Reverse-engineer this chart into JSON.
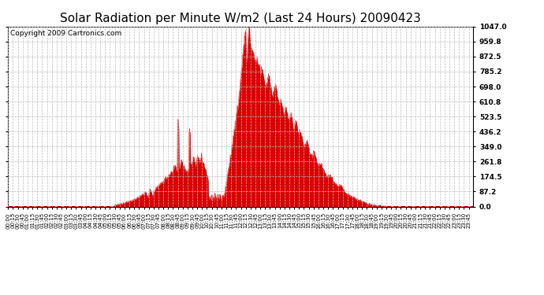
{
  "title": "Solar Radiation per Minute W/m2 (Last 24 Hours) 20090423",
  "copyright": "Copyright 2009 Cartronics.com",
  "y_ticks": [
    0.0,
    87.2,
    174.5,
    261.8,
    349.0,
    436.2,
    523.5,
    610.8,
    698.0,
    785.2,
    872.5,
    959.8,
    1047.0
  ],
  "ymax": 1047.0,
  "fill_color": "#dd0000",
  "dashed_line_color": "#dd0000",
  "grid_color": "#bbbbbb",
  "bg_color": "#ffffff",
  "title_fontsize": 11,
  "copyright_fontsize": 6.5
}
